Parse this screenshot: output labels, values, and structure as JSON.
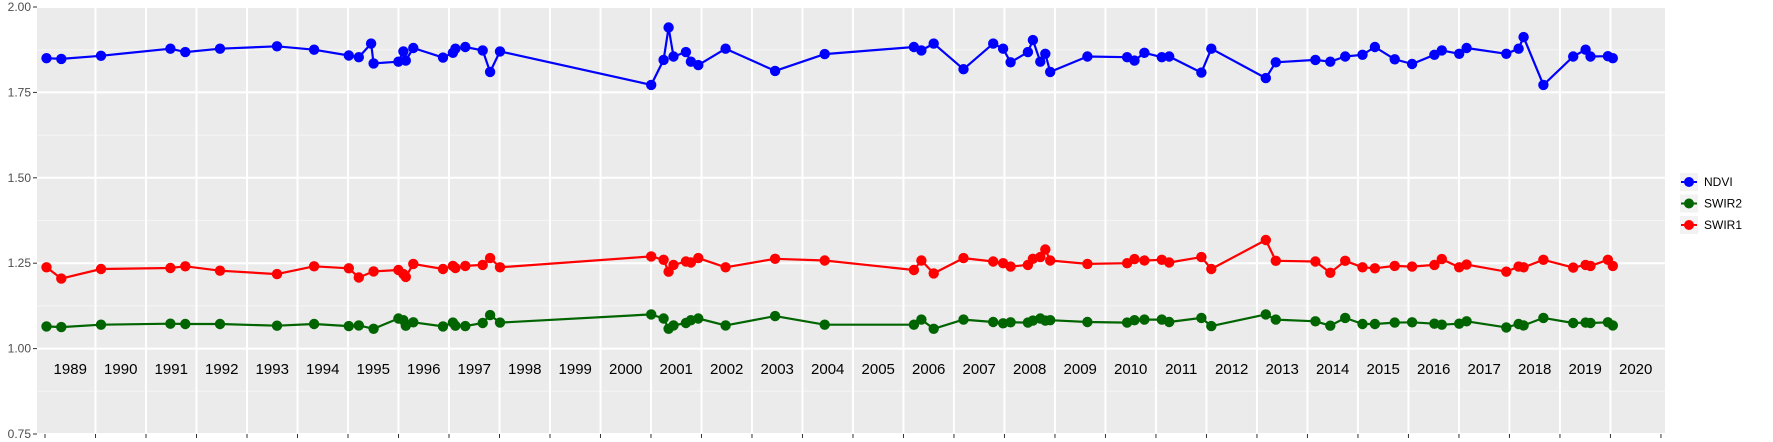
{
  "chart_data": {
    "type": "line",
    "title": "",
    "xlabel": "",
    "ylabel": "",
    "ylim": [
      0.75,
      2.0
    ],
    "yticks": [
      "0.75",
      "1.00",
      "1.25",
      "1.50",
      "1.75",
      "2.00"
    ],
    "xlim": [
      1988.25,
      2020.65
    ],
    "year_labels": [
      "1989",
      "1990",
      "1991",
      "1992",
      "1993",
      "1994",
      "1995",
      "1996",
      "1997",
      "1998",
      "1999",
      "2000",
      "2001",
      "2002",
      "2003",
      "2004",
      "2005",
      "2006",
      "2007",
      "2008",
      "2009",
      "2010",
      "2011",
      "2012",
      "2013",
      "2014",
      "2015",
      "2016",
      "2017",
      "2018",
      "2019",
      "2020"
    ],
    "grid": true,
    "legend": {
      "position": "right",
      "entries": [
        "NDVI",
        "SWIR2",
        "SWIR1"
      ]
    },
    "series": [
      {
        "name": "NDVI",
        "color": "#0000ff",
        "points": [
          [
            1988.3,
            1.85
          ],
          [
            1988.6,
            1.848
          ],
          [
            1989.4,
            1.857
          ],
          [
            1990.8,
            1.878
          ],
          [
            1991.1,
            1.868
          ],
          [
            1991.8,
            1.878
          ],
          [
            1992.95,
            1.885
          ],
          [
            1993.7,
            1.875
          ],
          [
            1994.4,
            1.858
          ],
          [
            1994.6,
            1.853
          ],
          [
            1994.85,
            1.893
          ],
          [
            1994.9,
            1.835
          ],
          [
            1995.4,
            1.84
          ],
          [
            1995.5,
            1.87
          ],
          [
            1995.55,
            1.843
          ],
          [
            1995.7,
            1.88
          ],
          [
            1996.3,
            1.852
          ],
          [
            1996.5,
            1.866
          ],
          [
            1996.55,
            1.878
          ],
          [
            1996.75,
            1.883
          ],
          [
            1997.1,
            1.873
          ],
          [
            1997.25,
            1.81
          ],
          [
            1997.45,
            1.87
          ],
          [
            2000.5,
            1.772
          ],
          [
            2000.75,
            1.845
          ],
          [
            2000.85,
            1.94
          ],
          [
            2000.95,
            1.855
          ],
          [
            2001.2,
            1.868
          ],
          [
            2001.3,
            1.84
          ],
          [
            2001.45,
            1.83
          ],
          [
            2002.0,
            1.878
          ],
          [
            2003.0,
            1.813
          ],
          [
            2004.0,
            1.862
          ],
          [
            2005.8,
            1.883
          ],
          [
            2005.95,
            1.873
          ],
          [
            2006.2,
            1.893
          ],
          [
            2006.8,
            1.818
          ],
          [
            2007.4,
            1.893
          ],
          [
            2007.6,
            1.878
          ],
          [
            2007.75,
            1.838
          ],
          [
            2008.1,
            1.868
          ],
          [
            2008.2,
            1.903
          ],
          [
            2008.35,
            1.84
          ],
          [
            2008.45,
            1.863
          ],
          [
            2008.55,
            1.81
          ],
          [
            2009.3,
            1.855
          ],
          [
            2010.1,
            1.853
          ],
          [
            2010.25,
            1.843
          ],
          [
            2010.45,
            1.866
          ],
          [
            2010.8,
            1.853
          ],
          [
            2010.95,
            1.855
          ],
          [
            2011.6,
            1.808
          ],
          [
            2011.8,
            1.878
          ],
          [
            2012.9,
            1.792
          ],
          [
            2013.1,
            1.838
          ],
          [
            2013.9,
            1.845
          ],
          [
            2014.2,
            1.84
          ],
          [
            2014.5,
            1.855
          ],
          [
            2014.85,
            1.86
          ],
          [
            2015.1,
            1.883
          ],
          [
            2015.5,
            1.847
          ],
          [
            2015.85,
            1.833
          ],
          [
            2016.3,
            1.86
          ],
          [
            2016.45,
            1.873
          ],
          [
            2016.8,
            1.863
          ],
          [
            2016.95,
            1.88
          ],
          [
            2017.75,
            1.863
          ],
          [
            2018.0,
            1.878
          ],
          [
            2018.1,
            1.912
          ],
          [
            2018.5,
            1.772
          ],
          [
            2019.1,
            1.855
          ],
          [
            2019.35,
            1.875
          ],
          [
            2019.45,
            1.855
          ],
          [
            2019.8,
            1.856
          ],
          [
            2019.9,
            1.85
          ]
        ]
      },
      {
        "name": "SWIR2",
        "color": "#006400",
        "points": [
          [
            1988.3,
            1.065
          ],
          [
            1988.6,
            1.063
          ],
          [
            1989.4,
            1.07
          ],
          [
            1990.8,
            1.073
          ],
          [
            1991.1,
            1.072
          ],
          [
            1991.8,
            1.072
          ],
          [
            1992.95,
            1.067
          ],
          [
            1993.7,
            1.072
          ],
          [
            1994.4,
            1.066
          ],
          [
            1994.6,
            1.068
          ],
          [
            1994.9,
            1.058
          ],
          [
            1995.4,
            1.088
          ],
          [
            1995.5,
            1.083
          ],
          [
            1995.55,
            1.067
          ],
          [
            1995.7,
            1.077
          ],
          [
            1996.3,
            1.065
          ],
          [
            1996.5,
            1.076
          ],
          [
            1996.55,
            1.067
          ],
          [
            1996.75,
            1.066
          ],
          [
            1997.1,
            1.075
          ],
          [
            1997.25,
            1.098
          ],
          [
            1997.45,
            1.076
          ],
          [
            2000.5,
            1.1
          ],
          [
            2000.75,
            1.088
          ],
          [
            2000.85,
            1.058
          ],
          [
            2000.95,
            1.068
          ],
          [
            2001.2,
            1.075
          ],
          [
            2001.3,
            1.083
          ],
          [
            2001.45,
            1.088
          ],
          [
            2002.0,
            1.068
          ],
          [
            2003.0,
            1.095
          ],
          [
            2004.0,
            1.07
          ],
          [
            2005.8,
            1.07
          ],
          [
            2005.95,
            1.085
          ],
          [
            2006.2,
            1.058
          ],
          [
            2006.8,
            1.085
          ],
          [
            2007.4,
            1.078
          ],
          [
            2007.6,
            1.074
          ],
          [
            2007.75,
            1.077
          ],
          [
            2008.1,
            1.076
          ],
          [
            2008.2,
            1.082
          ],
          [
            2008.35,
            1.088
          ],
          [
            2008.45,
            1.082
          ],
          [
            2008.55,
            1.083
          ],
          [
            2009.3,
            1.078
          ],
          [
            2010.1,
            1.076
          ],
          [
            2010.25,
            1.083
          ],
          [
            2010.45,
            1.085
          ],
          [
            2010.8,
            1.085
          ],
          [
            2010.95,
            1.078
          ],
          [
            2011.6,
            1.09
          ],
          [
            2011.8,
            1.066
          ],
          [
            2012.9,
            1.1
          ],
          [
            2013.1,
            1.085
          ],
          [
            2013.9,
            1.08
          ],
          [
            2014.2,
            1.067
          ],
          [
            2014.5,
            1.09
          ],
          [
            2014.85,
            1.072
          ],
          [
            2015.1,
            1.072
          ],
          [
            2015.5,
            1.076
          ],
          [
            2015.85,
            1.077
          ],
          [
            2016.3,
            1.073
          ],
          [
            2016.45,
            1.07
          ],
          [
            2016.8,
            1.073
          ],
          [
            2016.95,
            1.08
          ],
          [
            2017.75,
            1.062
          ],
          [
            2018.0,
            1.072
          ],
          [
            2018.1,
            1.068
          ],
          [
            2018.5,
            1.09
          ],
          [
            2019.1,
            1.075
          ],
          [
            2019.35,
            1.076
          ],
          [
            2019.45,
            1.075
          ],
          [
            2019.8,
            1.077
          ],
          [
            2019.9,
            1.068
          ]
        ]
      },
      {
        "name": "SWIR1",
        "color": "#ff0000",
        "points": [
          [
            1988.3,
            1.238
          ],
          [
            1988.6,
            1.205
          ],
          [
            1989.4,
            1.233
          ],
          [
            1990.8,
            1.236
          ],
          [
            1991.1,
            1.241
          ],
          [
            1991.8,
            1.228
          ],
          [
            1992.95,
            1.218
          ],
          [
            1993.7,
            1.241
          ],
          [
            1994.4,
            1.235
          ],
          [
            1994.6,
            1.208
          ],
          [
            1994.9,
            1.226
          ],
          [
            1995.4,
            1.23
          ],
          [
            1995.5,
            1.218
          ],
          [
            1995.55,
            1.21
          ],
          [
            1995.7,
            1.248
          ],
          [
            1996.3,
            1.233
          ],
          [
            1996.5,
            1.242
          ],
          [
            1996.55,
            1.236
          ],
          [
            1996.75,
            1.242
          ],
          [
            1997.1,
            1.245
          ],
          [
            1997.25,
            1.265
          ],
          [
            1997.45,
            1.238
          ],
          [
            2000.5,
            1.27
          ],
          [
            2000.75,
            1.26
          ],
          [
            2000.85,
            1.225
          ],
          [
            2000.95,
            1.245
          ],
          [
            2001.2,
            1.255
          ],
          [
            2001.3,
            1.252
          ],
          [
            2001.45,
            1.265
          ],
          [
            2002.0,
            1.238
          ],
          [
            2003.0,
            1.263
          ],
          [
            2004.0,
            1.258
          ],
          [
            2005.8,
            1.23
          ],
          [
            2005.95,
            1.258
          ],
          [
            2006.2,
            1.22
          ],
          [
            2006.8,
            1.265
          ],
          [
            2007.4,
            1.255
          ],
          [
            2007.6,
            1.25
          ],
          [
            2007.75,
            1.24
          ],
          [
            2008.1,
            1.245
          ],
          [
            2008.2,
            1.263
          ],
          [
            2008.35,
            1.268
          ],
          [
            2008.45,
            1.29
          ],
          [
            2008.55,
            1.258
          ],
          [
            2009.3,
            1.248
          ],
          [
            2010.1,
            1.25
          ],
          [
            2010.25,
            1.262
          ],
          [
            2010.45,
            1.258
          ],
          [
            2010.8,
            1.26
          ],
          [
            2010.95,
            1.252
          ],
          [
            2011.6,
            1.268
          ],
          [
            2011.8,
            1.233
          ],
          [
            2012.9,
            1.318
          ],
          [
            2013.1,
            1.257
          ],
          [
            2013.9,
            1.255
          ],
          [
            2014.2,
            1.222
          ],
          [
            2014.5,
            1.257
          ],
          [
            2014.85,
            1.238
          ],
          [
            2015.1,
            1.235
          ],
          [
            2015.5,
            1.242
          ],
          [
            2015.85,
            1.24
          ],
          [
            2016.3,
            1.245
          ],
          [
            2016.45,
            1.262
          ],
          [
            2016.8,
            1.238
          ],
          [
            2016.95,
            1.246
          ],
          [
            2017.75,
            1.225
          ],
          [
            2018.0,
            1.24
          ],
          [
            2018.1,
            1.238
          ],
          [
            2018.5,
            1.26
          ],
          [
            2019.1,
            1.237
          ],
          [
            2019.35,
            1.245
          ],
          [
            2019.45,
            1.242
          ],
          [
            2019.8,
            1.26
          ],
          [
            2019.9,
            1.242
          ]
        ]
      }
    ]
  }
}
